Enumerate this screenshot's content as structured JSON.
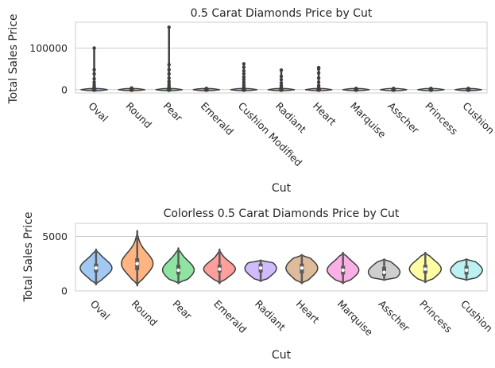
{
  "chart_data": [
    {
      "type": "violin",
      "title": "0.5 Carat Diamonds Price by Cut",
      "xlabel": "Cut",
      "ylabel": "Total Sales Price",
      "ylim": [
        -8000,
        162000
      ],
      "yticks": [
        0,
        100000
      ],
      "ytick_labels": [
        "0",
        "100000"
      ],
      "grid": true,
      "categories": [
        "Oval",
        "Round",
        "Pear",
        "Emerald",
        "Cushion Modified",
        "Radiant",
        "Heart",
        "Marquise",
        "Asscher",
        "Princess",
        "Cushion"
      ],
      "max_values": [
        100000,
        5000,
        150000,
        3000,
        62000,
        47000,
        53000,
        4000,
        3000,
        3000,
        3000
      ],
      "outliers": [
        [
          100000,
          48000,
          38000,
          26000,
          18000,
          12000,
          8000,
          5000,
          3000
        ],
        [
          4000,
          3000
        ],
        [
          150000,
          60000,
          48000,
          38000,
          28000,
          20000,
          14000,
          9000,
          6000,
          3000
        ],
        [
          3000
        ],
        [
          62000,
          54000,
          45000,
          38000,
          30000,
          24000,
          18000,
          12000,
          7000,
          4000
        ],
        [
          47000,
          32000,
          24000,
          16000,
          10000,
          6000,
          3000
        ],
        [
          53000,
          50000,
          40000,
          28000,
          18000,
          10000,
          5000,
          3000
        ],
        [
          3000
        ],
        [
          3000
        ],
        [
          3000
        ],
        [
          3000
        ]
      ],
      "colors": [
        "#a1c9f4",
        "#ffb482",
        "#8de5a1",
        "#ff9f9b",
        "#d0bbff",
        "#debb9b",
        "#fab0e4",
        "#cfcfcf",
        "#fffea3",
        "#b9f2f0",
        "#a1c9f4"
      ]
    },
    {
      "type": "violin",
      "title": "Colorless 0.5 Carat Diamonds Price by Cut",
      "xlabel": "Cut",
      "ylabel": "Total Sales Price",
      "ylim": [
        0,
        6200
      ],
      "yticks": [
        0,
        5000
      ],
      "ytick_labels": [
        "0",
        "5000"
      ],
      "grid": true,
      "categories": [
        "Oval",
        "Round",
        "Pear",
        "Emerald",
        "Radiant",
        "Heart",
        "Marquise",
        "Asscher",
        "Princess",
        "Cushion"
      ],
      "min_values": [
        600,
        500,
        700,
        700,
        900,
        700,
        700,
        1000,
        800,
        1000
      ],
      "max_values": [
        3800,
        5500,
        3900,
        3800,
        2800,
        3300,
        3500,
        2900,
        3500,
        2900
      ],
      "medians": [
        2100,
        2500,
        1900,
        2000,
        2100,
        2100,
        1900,
        1700,
        2000,
        1900
      ],
      "q1": [
        1700,
        1900,
        1500,
        1700,
        1700,
        1600,
        1500,
        1400,
        1600,
        1500
      ],
      "q3": [
        2500,
        3000,
        2400,
        2400,
        2500,
        2500,
        2300,
        2200,
        2400,
        2300
      ],
      "colors": [
        "#a1c9f4",
        "#ffb482",
        "#8de5a1",
        "#ff9f9b",
        "#d0bbff",
        "#debb9b",
        "#fab0e4",
        "#cfcfcf",
        "#fffea3",
        "#b9f2f0"
      ]
    }
  ]
}
